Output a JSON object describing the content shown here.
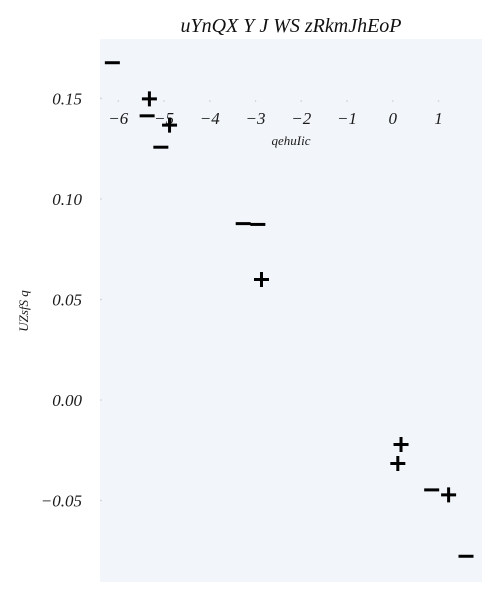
{
  "chart_data": {
    "type": "scatter",
    "title": "uYnQX Y J WS zRkmJhEoP",
    "xlabel": "qehuIic",
    "ylabel": "UZsfS q",
    "xlim": [
      -6.4,
      1.95
    ],
    "ylim": [
      -0.0905,
      0.1795
    ],
    "x_ticks": [
      -6,
      -5,
      -4,
      -3,
      -2,
      -1,
      0,
      1
    ],
    "x_tick_labels": [
      "−6",
      "−5",
      "−4",
      "−3",
      "−2",
      "−1",
      "0",
      "1"
    ],
    "y_ticks": [
      0.15,
      0.1,
      0.05,
      0.0,
      -0.05
    ],
    "y_tick_labels": [
      "0.15",
      "0.10",
      "0.05",
      "0.00",
      "−0.05"
    ],
    "x_axis_position": "top, inside plot",
    "grid": false,
    "background_color": "#f2f5f9",
    "marker_color": "#000000",
    "series": [
      {
        "marker": "minus",
        "points": [
          {
            "x": -6.13,
            "y": 0.1677
          },
          {
            "x": -5.37,
            "y": 0.1413
          },
          {
            "x": -5.07,
            "y": 0.1257
          },
          {
            "x": -3.27,
            "y": 0.0877
          },
          {
            "x": -2.95,
            "y": 0.0873
          },
          {
            "x": 0.85,
            "y": -0.0447
          },
          {
            "x": 1.6,
            "y": -0.0777
          }
        ]
      },
      {
        "marker": "plus",
        "points": [
          {
            "x": -5.32,
            "y": 0.1497
          },
          {
            "x": -4.88,
            "y": 0.1367
          },
          {
            "x": -2.87,
            "y": 0.0599
          },
          {
            "x": 0.18,
            "y": -0.0221
          },
          {
            "x": 0.11,
            "y": -0.0316
          },
          {
            "x": 1.22,
            "y": -0.0472
          }
        ]
      }
    ]
  }
}
